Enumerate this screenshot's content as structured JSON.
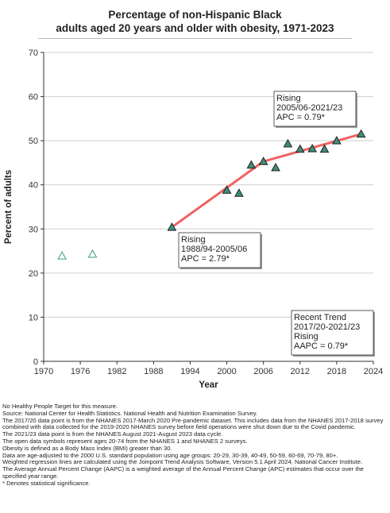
{
  "title": {
    "line1": "Percentage of non-Hispanic Black",
    "line2": "adults aged 20 years and older with obesity, 1971-2023"
  },
  "chart_data": {
    "type": "scatter",
    "title": "Percentage of non-Hispanic Black adults aged 20 years and older with obesity, 1971-2023",
    "xlabel": "Year",
    "ylabel": "Percent of adults",
    "xlim": [
      1970,
      2024
    ],
    "ylim": [
      0,
      70
    ],
    "x_ticks": [
      "1970",
      "1976",
      "1982",
      "1988",
      "1994",
      "2000",
      "2006",
      "2012",
      "2018",
      "2024"
    ],
    "y_ticks": [
      "0",
      "10",
      "20",
      "30",
      "40",
      "50",
      "60",
      "70"
    ],
    "grid": "horizontal",
    "series": [
      {
        "marker": "open-triangle",
        "color": "#3a9a8a",
        "points": [
          {
            "x": 1973,
            "y": 23.9
          },
          {
            "x": 1978,
            "y": 24.3
          }
        ]
      },
      {
        "marker": "filled-triangle",
        "color": "#3f8f7b",
        "points": [
          {
            "x": 1991,
            "y": 30.4
          },
          {
            "x": 2000,
            "y": 38.8
          },
          {
            "x": 2002,
            "y": 38.1
          },
          {
            "x": 2004,
            "y": 44.5
          },
          {
            "x": 2006,
            "y": 45.3
          },
          {
            "x": 2008,
            "y": 43.9
          },
          {
            "x": 2010,
            "y": 49.3
          },
          {
            "x": 2012,
            "y": 48.1
          },
          {
            "x": 2014,
            "y": 48.2
          },
          {
            "x": 2016,
            "y": 48.1
          },
          {
            "x": 2018,
            "y": 50.0
          },
          {
            "x": 2022,
            "y": 51.5
          }
        ]
      }
    ],
    "trend_lines": [
      {
        "color": "#f06262",
        "points": [
          {
            "x": 1991,
            "y": 30.4
          },
          {
            "x": 2006,
            "y": 45.3
          }
        ]
      },
      {
        "color": "#f06262",
        "points": [
          {
            "x": 2006,
            "y": 45.3
          },
          {
            "x": 2022,
            "y": 51.5
          }
        ]
      }
    ],
    "annotations": [
      {
        "lines": [
          "Rising",
          "2005/06-2021/23",
          "APC =  0.79*"
        ]
      },
      {
        "lines": [
          "Rising",
          "1988/94-2005/06",
          "APC =  2.79*"
        ]
      },
      {
        "lines": [
          "Recent Trend",
          "2017/20-2021/23",
          "Rising",
          "AAPC =  0.79*"
        ]
      }
    ]
  },
  "notes": [
    "No Healthy People Target for this measure.",
    "Source: National Center for Health Statistics. National Health and Nutrition Examination Survey.",
    "The 2017/20 data point is from the NHANES 2017-March 2020 Pre-pandemic dataset. This includes data from the NHANES 2017-2018 survey combined with data collected for the 2019-2020 NHANES survey before field operations were shut down due to the Covid pandemic.",
    "The 2021/23 data point is from the NHANES August 2021-August 2023 data cycle.",
    "The open data symbols represent ages 20-74 from the NHANES 1 and NHANES 2 surveys.",
    "Obesity is defined as a Body Mass Index (BMI) greater than 30.",
    "Data are age-adjusted to the 2000 U.S. standard population using age groups: 20-29, 30-39, 40-49, 50-59, 60-69, 70-79, 80+.",
    "Weighted regression lines are calculated using the Joinpoint Trend Analysis Software, Version 5.1 April 2024, National Cancer Institute.",
    "The Average Annual Percent Change (AAPC) is a weighted average of the Annual Percent Change (APC) estimates that occur over the specified year range.",
    "* Denotes statistical significance."
  ]
}
